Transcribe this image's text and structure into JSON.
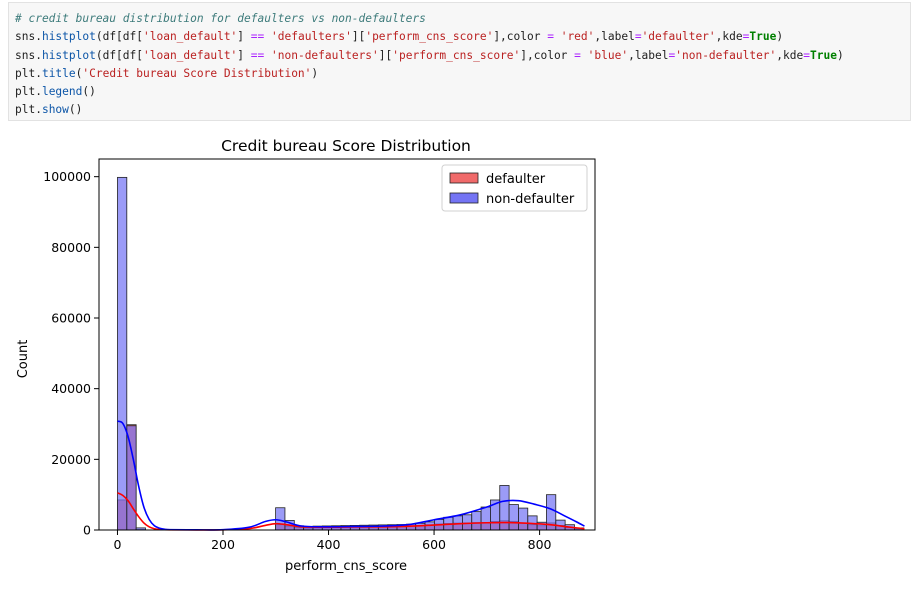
{
  "code_cell": {
    "lines": [
      [
        {
          "t": "# credit bureau distribution for defaulters vs non-defaulters",
          "c": "comment"
        }
      ],
      [
        {
          "t": "sns.",
          "c": ""
        },
        {
          "t": "histplot",
          "c": "func"
        },
        {
          "t": "(df[df[",
          "c": ""
        },
        {
          "t": "'loan_default'",
          "c": "str"
        },
        {
          "t": "] ",
          "c": ""
        },
        {
          "t": "==",
          "c": "op"
        },
        {
          "t": " ",
          "c": ""
        },
        {
          "t": "'defaulters'",
          "c": "str"
        },
        {
          "t": "][",
          "c": ""
        },
        {
          "t": "'perform_cns_score'",
          "c": "str"
        },
        {
          "t": "],color ",
          "c": ""
        },
        {
          "t": "=",
          "c": "op"
        },
        {
          "t": " ",
          "c": ""
        },
        {
          "t": "'red'",
          "c": "str"
        },
        {
          "t": ",label",
          "c": ""
        },
        {
          "t": "=",
          "c": "op"
        },
        {
          "t": "'defaulter'",
          "c": "str"
        },
        {
          "t": ",kde",
          "c": ""
        },
        {
          "t": "=",
          "c": "op"
        },
        {
          "t": "True",
          "c": "kw"
        },
        {
          "t": ")",
          "c": ""
        }
      ],
      [
        {
          "t": "sns.",
          "c": ""
        },
        {
          "t": "histplot",
          "c": "func"
        },
        {
          "t": "(df[df[",
          "c": ""
        },
        {
          "t": "'loan_default'",
          "c": "str"
        },
        {
          "t": "] ",
          "c": ""
        },
        {
          "t": "==",
          "c": "op"
        },
        {
          "t": " ",
          "c": ""
        },
        {
          "t": "'non-defaulters'",
          "c": "str"
        },
        {
          "t": "][",
          "c": ""
        },
        {
          "t": "'perform_cns_score'",
          "c": "str"
        },
        {
          "t": "],color ",
          "c": ""
        },
        {
          "t": "=",
          "c": "op"
        },
        {
          "t": " ",
          "c": ""
        },
        {
          "t": "'blue'",
          "c": "str"
        },
        {
          "t": ",label",
          "c": ""
        },
        {
          "t": "=",
          "c": "op"
        },
        {
          "t": "'non-defaulter'",
          "c": "str"
        },
        {
          "t": ",kde",
          "c": ""
        },
        {
          "t": "=",
          "c": "op"
        },
        {
          "t": "True",
          "c": "kw"
        },
        {
          "t": ")",
          "c": ""
        }
      ],
      [
        {
          "t": "plt.",
          "c": ""
        },
        {
          "t": "title",
          "c": "func"
        },
        {
          "t": "(",
          "c": ""
        },
        {
          "t": "'Credit bureau Score Distribution'",
          "c": "str"
        },
        {
          "t": ")",
          "c": ""
        }
      ],
      [
        {
          "t": "plt.",
          "c": ""
        },
        {
          "t": "legend",
          "c": "func"
        },
        {
          "t": "()",
          "c": ""
        }
      ],
      [
        {
          "t": "plt.",
          "c": ""
        },
        {
          "t": "show",
          "c": "func"
        },
        {
          "t": "()",
          "c": ""
        }
      ]
    ]
  },
  "colors": {
    "defaulter_fill": "#f06a6a",
    "defaulter_line": "#ff0000",
    "nondefaulter_fill": "#7474f4",
    "nondefaulter_line": "#0000ff",
    "overlap_fill": "#9c4d9c"
  },
  "chart_data": {
    "type": "bar",
    "title": "Credit bureau Score Distribution",
    "xlabel": "perform_cns_score",
    "ylabel": "Count",
    "xlim": [
      -35,
      905
    ],
    "ylim": [
      0,
      105000
    ],
    "xticks": [
      0,
      200,
      400,
      600,
      800
    ],
    "yticks": [
      0,
      20000,
      40000,
      60000,
      80000,
      100000
    ],
    "legend_position": "top-right",
    "bin_width": 17.7,
    "series": [
      {
        "name": "defaulter",
        "bin_starts": [
          0,
          17.7,
          35.4,
          299.7,
          317.4,
          335.1,
          352.8,
          370.5,
          388.2,
          405.9,
          423.6,
          441.3,
          459.0,
          476.7,
          494.4,
          512.1,
          529.8,
          547.5,
          565.2,
          582.9,
          600.6,
          618.3,
          636.0,
          653.7,
          671.4,
          689.1,
          706.8,
          724.5,
          742.2,
          759.9,
          777.6,
          795.3,
          813.0,
          830.7,
          848.4,
          866.1
        ],
        "values": [
          8500,
          29800,
          150,
          1500,
          1100,
          700,
          600,
          650,
          700,
          750,
          800,
          850,
          900,
          950,
          1000,
          1050,
          1100,
          1150,
          1300,
          1500,
          1700,
          1850,
          1950,
          2000,
          2100,
          2150,
          2400,
          2600,
          2450,
          1900,
          1500,
          1200,
          2000,
          1300,
          700,
          300
        ]
      },
      {
        "name": "non-defaulter",
        "bin_starts": [
          0,
          17.7,
          35.4,
          299.7,
          317.4,
          335.1,
          352.8,
          370.5,
          388.2,
          405.9,
          423.6,
          441.3,
          459.0,
          476.7,
          494.4,
          512.1,
          529.8,
          547.5,
          565.2,
          582.9,
          600.6,
          618.3,
          636.0,
          653.7,
          671.4,
          689.1,
          706.8,
          724.5,
          742.2,
          759.9,
          777.6,
          795.3,
          813.0,
          830.7,
          848.4,
          866.1
        ],
        "values": [
          99800,
          29500,
          600,
          6300,
          2700,
          1200,
          1000,
          1100,
          1150,
          1200,
          1250,
          1300,
          1350,
          1400,
          1450,
          1500,
          1550,
          1650,
          1900,
          2300,
          3000,
          3600,
          4000,
          4300,
          5200,
          6500,
          8500,
          12600,
          7200,
          6200,
          4000,
          2200,
          10000,
          2800,
          1500,
          600
        ]
      }
    ],
    "kde": [
      {
        "name": "defaulter",
        "x": [
          0,
          10,
          20,
          30,
          40,
          50,
          60,
          70,
          80,
          100,
          150,
          200,
          250,
          280,
          300,
          320,
          350,
          400,
          450,
          500,
          550,
          600,
          650,
          700,
          740,
          780,
          820,
          850,
          870,
          885
        ],
        "y": [
          10500,
          9800,
          8300,
          6000,
          3800,
          2000,
          900,
          350,
          150,
          60,
          30,
          60,
          400,
          1300,
          1800,
          1500,
          900,
          800,
          850,
          900,
          1050,
          1400,
          1800,
          2050,
          2100,
          1900,
          1500,
          950,
          600,
          380
        ]
      },
      {
        "name": "non-defaulter",
        "x": [
          0,
          10,
          20,
          30,
          40,
          50,
          60,
          70,
          80,
          90,
          100,
          150,
          200,
          250,
          280,
          300,
          320,
          350,
          400,
          450,
          500,
          550,
          600,
          650,
          700,
          730,
          760,
          790,
          820,
          850,
          870,
          885
        ],
        "y": [
          30800,
          30200,
          26500,
          20000,
          12500,
          6500,
          3000,
          1200,
          500,
          200,
          100,
          50,
          100,
          800,
          2400,
          2900,
          2300,
          1100,
          900,
          1000,
          1100,
          1500,
          2900,
          4300,
          6500,
          8100,
          8300,
          7300,
          6000,
          3800,
          2300,
          1100
        ]
      }
    ]
  }
}
